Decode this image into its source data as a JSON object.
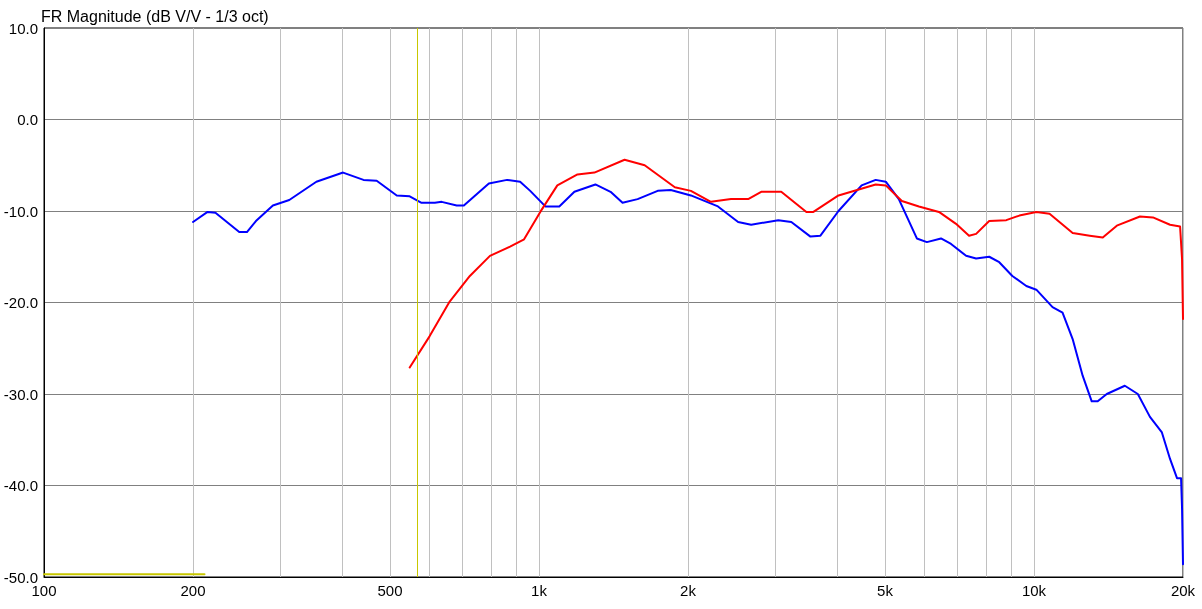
{
  "chart_data": {
    "type": "line",
    "title": "FR Magnitude (dB V/V - 1/3 oct)",
    "log": "x",
    "grid": true,
    "marker": "none",
    "line_style": "solid",
    "xlim": [
      100,
      20000
    ],
    "xticks": [
      100,
      {
        "value": 200,
        "label": "200"
      },
      {
        "value": 300,
        "label": null
      },
      {
        "value": 400,
        "label": null
      },
      {
        "value": 500,
        "label": "500"
      },
      {
        "value": 600,
        "label": null
      },
      {
        "value": 700,
        "label": null
      },
      {
        "value": 800,
        "label": null
      },
      {
        "value": 900,
        "label": null
      },
      {
        "value": 1000,
        "label": "1k"
      },
      {
        "value": 2000,
        "label": "2k"
      },
      {
        "value": 3000,
        "label": null
      },
      {
        "value": 4000,
        "label": null
      },
      {
        "value": 5000,
        "label": "5k"
      },
      {
        "value": 6000,
        "label": null
      },
      {
        "value": 7000,
        "label": null
      },
      {
        "value": 8000,
        "label": null
      },
      {
        "value": 9000,
        "label": null
      },
      {
        "value": 10000,
        "label": "10k"
      },
      {
        "value": 20000,
        "label": "20k"
      }
    ],
    "ylim": [
      -50,
      10
    ],
    "yticks": [
      {
        "value": -50,
        "label": "-50.0"
      },
      {
        "value": -40,
        "label": "-40.0"
      },
      {
        "value": -30,
        "label": "-30.0"
      },
      {
        "value": -20,
        "label": "-20.0"
      },
      {
        "value": -10,
        "label": "-10.0"
      },
      {
        "value": 0,
        "label": "0.0"
      },
      {
        "value": 10,
        "label": "10.0"
      }
    ],
    "ref_lines": [
      {
        "axis": "x",
        "value": 567,
        "color": "#c8c800"
      }
    ],
    "series": [
      {
        "color": "#0000ff",
        "x": [
          200,
          214,
          222,
          248,
          257,
          268,
          290,
          313,
          355,
          402,
          442,
          470,
          516,
          548,
          579,
          616,
          636,
          682,
          705,
          792,
          862,
          916,
          960,
          1030,
          1099,
          1179,
          1300,
          1395,
          1475,
          1582,
          1737,
          1846,
          2027,
          2299,
          2525,
          2683,
          3044,
          3234,
          3535,
          3703,
          4028,
          4485,
          4788,
          5018,
          5332,
          5799,
          6076,
          6488,
          6799,
          7292,
          7640,
          8119,
          8508,
          9042,
          9650,
          10110,
          10900,
          11420,
          11970,
          12540,
          13080,
          13450,
          14030,
          15260,
          16210,
          17150,
          18130,
          18830,
          19450,
          19820,
          19910,
          20000
        ],
        "values": [
          -11.2,
          -10.1,
          -10.2,
          -12.3,
          -12.3,
          -11.1,
          -9.4,
          -8.8,
          -6.8,
          -5.8,
          -6.6,
          -6.7,
          -8.3,
          -8.4,
          -9.1,
          -9.1,
          -9.0,
          -9.4,
          -9.4,
          -7.0,
          -6.6,
          -6.8,
          -7.8,
          -9.5,
          -9.5,
          -7.9,
          -7.1,
          -7.9,
          -9.1,
          -8.7,
          -7.8,
          -7.7,
          -8.3,
          -9.5,
          -11.2,
          -11.5,
          -11.0,
          -11.2,
          -12.8,
          -12.7,
          -10.0,
          -7.2,
          -6.6,
          -6.8,
          -8.7,
          -13.0,
          -13.4,
          -13.0,
          -13.6,
          -14.9,
          -15.2,
          -15.0,
          -15.6,
          -17.1,
          -18.2,
          -18.6,
          -20.5,
          -21.1,
          -24.0,
          -28.0,
          -30.8,
          -30.8,
          -30.0,
          -29.1,
          -30.0,
          -32.5,
          -34.2,
          -37.1,
          -39.2,
          -39.2,
          -42.4,
          -48.6
        ]
      },
      {
        "color": "#ff0000",
        "x": [
          548,
          601,
          660,
          725,
          796,
          874,
          933,
          1006,
          1089,
          1196,
          1294,
          1489,
          1635,
          1881,
          2027,
          2225,
          2443,
          2646,
          2811,
          3086,
          3469,
          3584,
          4028,
          4788,
          5018,
          5408,
          5855,
          6427,
          6958,
          7393,
          7640,
          8119,
          8790,
          9342,
          10110,
          10750,
          11970,
          12960,
          13770,
          14700,
          16370,
          17390,
          18830,
          19730,
          19910,
          20000
        ],
        "values": [
          -27.1,
          -23.7,
          -19.9,
          -17.1,
          -14.9,
          -13.9,
          -13.1,
          -10.1,
          -7.2,
          -6.0,
          -5.8,
          -4.4,
          -5.0,
          -7.4,
          -7.8,
          -9.0,
          -8.7,
          -8.7,
          -7.9,
          -7.9,
          -10.1,
          -10.1,
          -8.3,
          -7.1,
          -7.2,
          -8.9,
          -9.5,
          -10.1,
          -11.4,
          -12.7,
          -12.5,
          -11.1,
          -11.0,
          -10.5,
          -10.1,
          -10.3,
          -12.4,
          -12.7,
          -12.9,
          -11.6,
          -10.6,
          -10.7,
          -11.5,
          -11.7,
          -15.2,
          -21.8
        ]
      },
      {
        "color": "#c8c800",
        "x": [
          100,
          211
        ],
        "values": [
          -49.7,
          -49.7
        ]
      }
    ]
  }
}
